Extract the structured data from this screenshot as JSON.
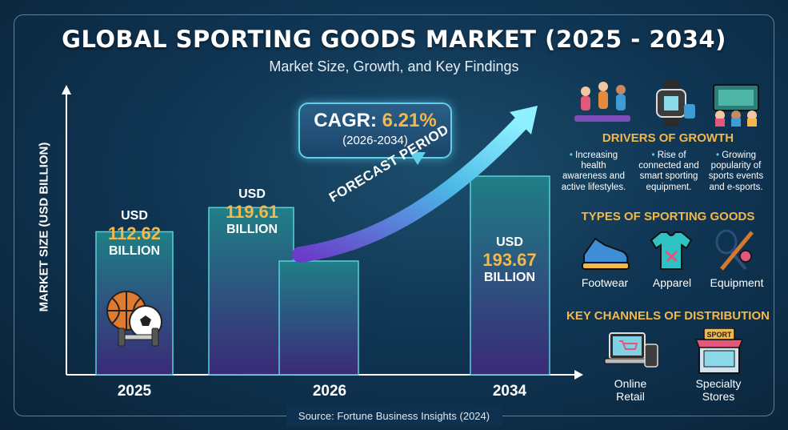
{
  "title": "GLOBAL SPORTING GOODS MARKET (2025 - 2034)",
  "subtitle": "Market Size, Growth, and Key Findings",
  "chart_data": {
    "type": "bar",
    "ylabel": "MARKET SIZE (USD BILLION)",
    "categories": [
      "2025",
      "2026",
      "2034"
    ],
    "values": [
      112.62,
      119.61,
      193.67
    ],
    "value_prefix": "USD",
    "value_suffix": "BILLION",
    "bars": [
      {
        "year": "2025",
        "value": 112.62,
        "value_text": "112.62"
      },
      {
        "year": "2026",
        "value": 119.61,
        "value_text": "119.61"
      },
      {
        "year": "2034",
        "value": 193.67,
        "value_text": "193.67"
      }
    ],
    "cagr": {
      "label": "CAGR:",
      "value": "6.21%",
      "period": "(2026-2034)"
    },
    "forecast_label": "FORECAST PERIOD",
    "colors": {
      "bar_top": "#1f7f86",
      "bar_bottom": "#3a2a78",
      "bar_border": "#5ad0dd",
      "accent": "#f2b84b"
    }
  },
  "drivers": {
    "heading": "DRIVERS OF GROWTH",
    "items": [
      {
        "text": "Increasing health awareness and active lifestyles.",
        "icon": "fitness-people-icon"
      },
      {
        "text": "Rise of connected and smart sporting equipment.",
        "icon": "smartwatch-icon"
      },
      {
        "text": "Growing popularity of sports events and e-sports.",
        "icon": "stadium-crowd-icon"
      }
    ]
  },
  "types": {
    "heading": "TYPES OF SPORTING GOODS",
    "items": [
      {
        "label": "Footwear",
        "icon": "sneaker-icon"
      },
      {
        "label": "Apparel",
        "icon": "jersey-icon"
      },
      {
        "label": "Equipment",
        "icon": "racket-bat-icon"
      }
    ]
  },
  "channels": {
    "heading": "KEY CHANNELS OF DISTRIBUTION",
    "items": [
      {
        "label": "Online Retail",
        "icon": "laptop-cart-icon"
      },
      {
        "label": "Specialty Stores",
        "icon": "sport-store-icon",
        "sign": "SPORT"
      }
    ]
  },
  "source": "Source: Fortune Business Insights (2024)"
}
